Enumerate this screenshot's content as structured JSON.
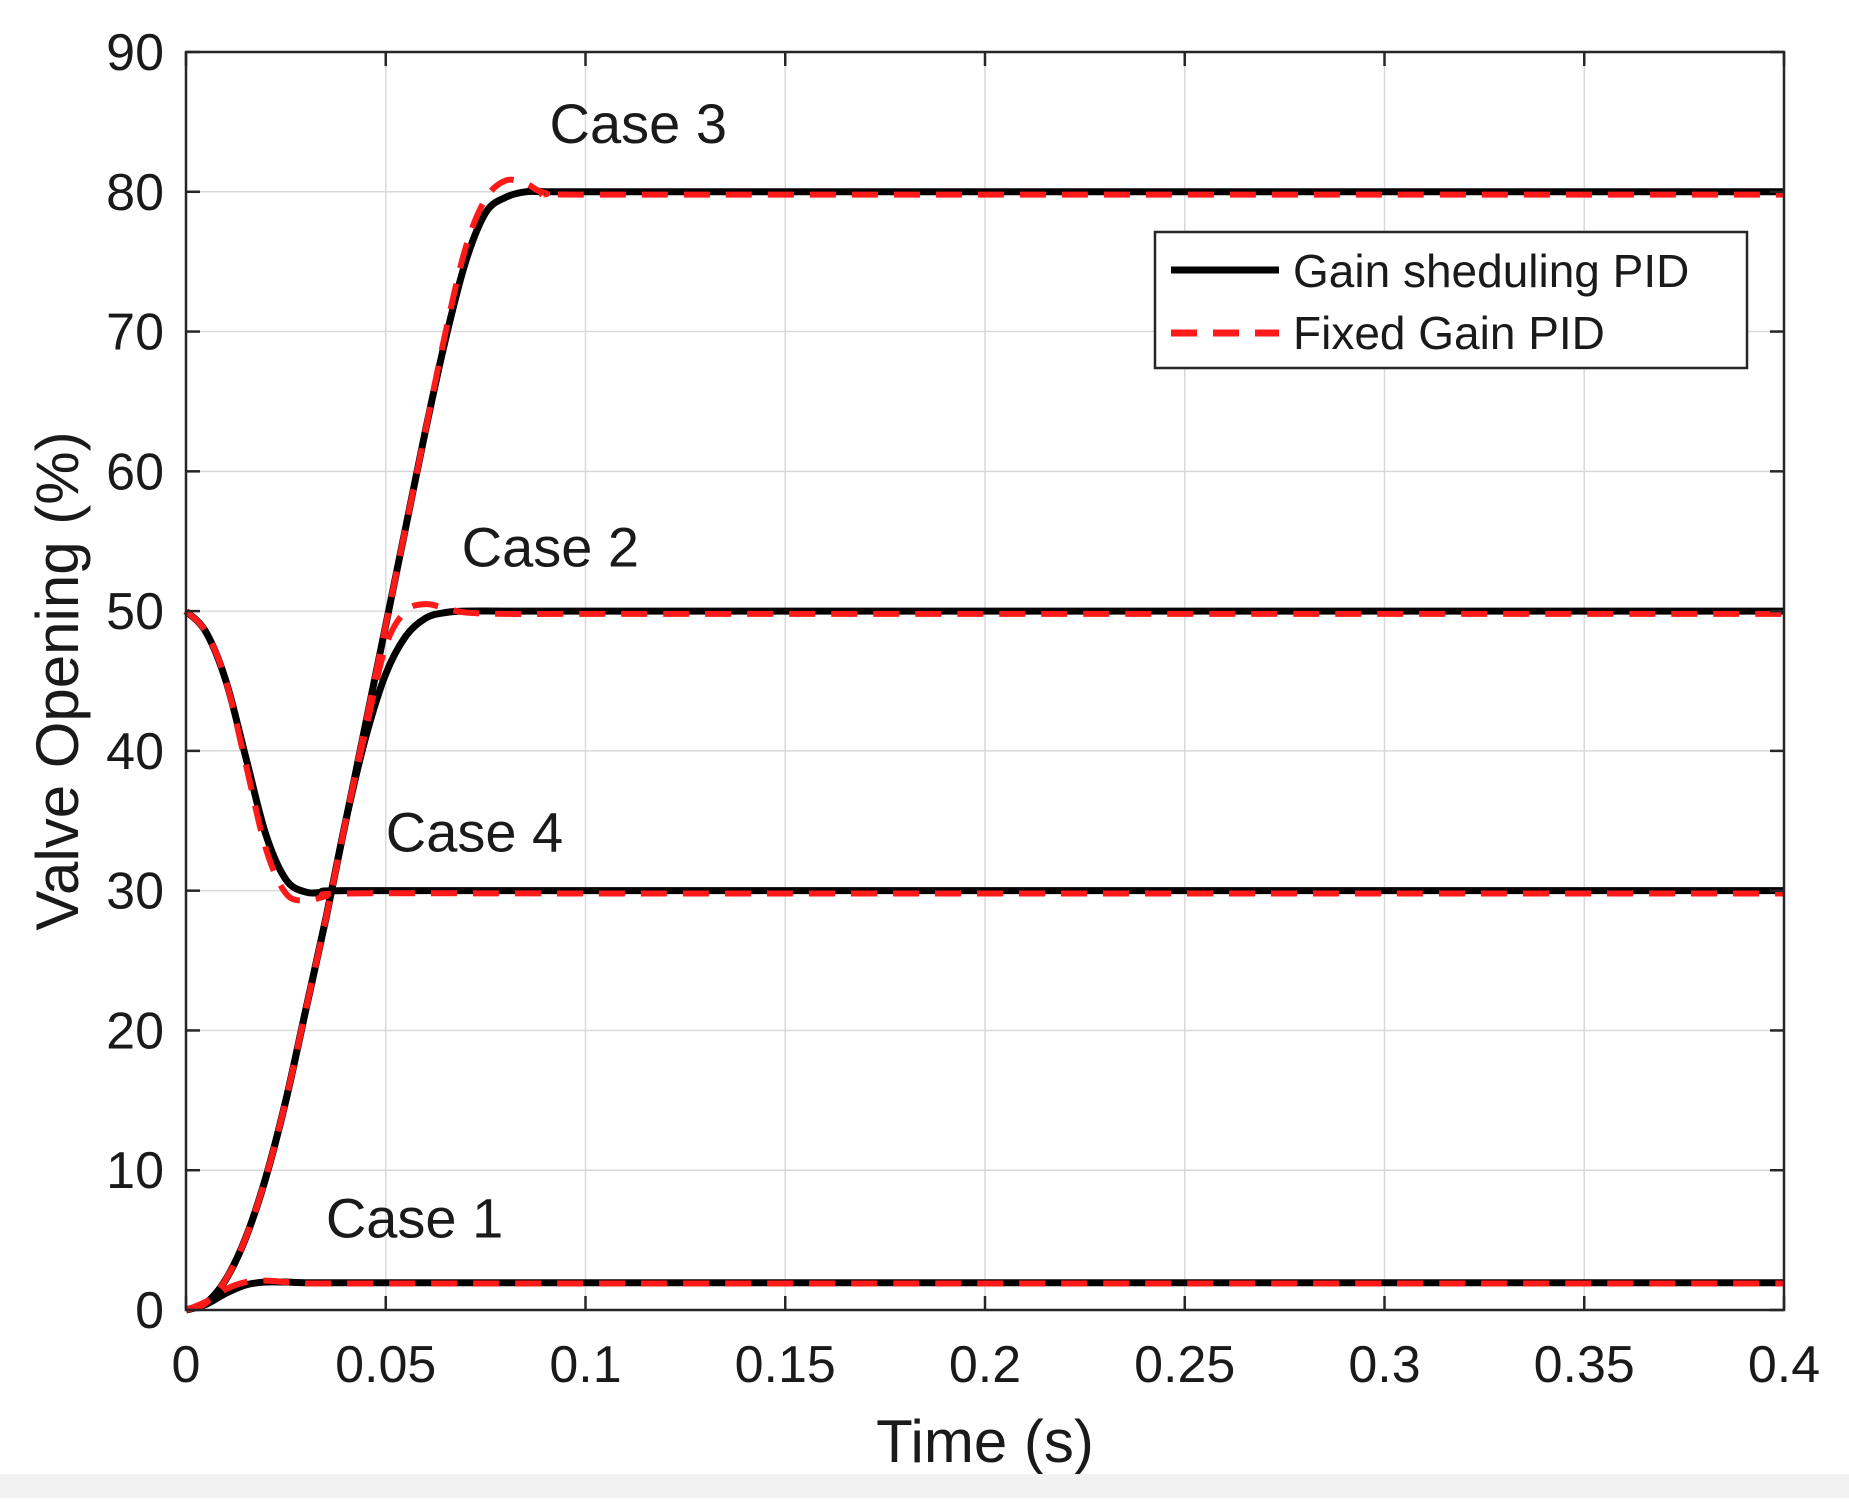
{
  "chart_data": {
    "type": "line",
    "xlabel": "Time (s)",
    "ylabel": "Valve Opening (%)",
    "xlim": [
      0,
      0.4
    ],
    "ylim": [
      0,
      90
    ],
    "xticks": [
      "0",
      "0.05",
      "0.1",
      "0.15",
      "0.2",
      "0.25",
      "0.3",
      "0.35",
      "0.4"
    ],
    "yticks": [
      "0",
      "10",
      "20",
      "30",
      "40",
      "50",
      "60",
      "70",
      "80",
      "90"
    ],
    "grid": true,
    "legend_position": "top-right",
    "legend": [
      {
        "label": "Gain sheduling PID",
        "color": "#000000",
        "style": "solid"
      },
      {
        "label": "Fixed Gain PID",
        "color": "#ff1a1a",
        "style": "dashed"
      }
    ],
    "annotations": [
      {
        "text": "Case 1",
        "x": 0.035,
        "y": 5.2
      },
      {
        "text": "Case 2",
        "x": 0.069,
        "y": 53.2
      },
      {
        "text": "Case 3",
        "x": 0.091,
        "y": 83.5
      },
      {
        "text": "Case 4",
        "x": 0.05,
        "y": 32.8
      }
    ],
    "series": [
      {
        "name": "Gain sheduling PID",
        "case": "Case 1",
        "color": "#000000",
        "style": "solid",
        "x": [
          0,
          0.005,
          0.01,
          0.015,
          0.02,
          0.025,
          0.03,
          0.04,
          0.1,
          0.2,
          0.3,
          0.4
        ],
        "y": [
          0,
          0.4,
          1.2,
          1.8,
          2.0,
          2.0,
          1.95,
          1.95,
          1.95,
          1.95,
          1.95,
          1.95
        ]
      },
      {
        "name": "Fixed Gain PID",
        "case": "Case 1",
        "color": "#ff1a1a",
        "style": "dashed",
        "x": [
          0,
          0.005,
          0.01,
          0.015,
          0.02,
          0.025,
          0.03,
          0.04,
          0.1,
          0.2,
          0.3,
          0.4
        ],
        "y": [
          0,
          0.6,
          1.5,
          2.0,
          2.1,
          2.0,
          1.9,
          1.9,
          1.9,
          1.9,
          1.9,
          1.9
        ]
      },
      {
        "name": "Gain sheduling PID",
        "case": "Case 2",
        "color": "#000000",
        "style": "solid",
        "x": [
          0,
          0.005,
          0.01,
          0.015,
          0.02,
          0.025,
          0.03,
          0.035,
          0.04,
          0.045,
          0.05,
          0.055,
          0.06,
          0.065,
          0.07,
          0.08,
          0.1,
          0.2,
          0.3,
          0.4
        ],
        "y": [
          0,
          0.5,
          2.2,
          5.2,
          9.5,
          15.0,
          21.5,
          28.0,
          35.0,
          41.0,
          45.5,
          48.2,
          49.5,
          49.9,
          50.0,
          50.0,
          50.0,
          50.0,
          50.0,
          50.0
        ]
      },
      {
        "name": "Fixed Gain PID",
        "case": "Case 2",
        "color": "#ff1a1a",
        "style": "dashed",
        "x": [
          0,
          0.005,
          0.01,
          0.015,
          0.02,
          0.025,
          0.03,
          0.035,
          0.04,
          0.045,
          0.05,
          0.055,
          0.06,
          0.065,
          0.07,
          0.08,
          0.1,
          0.2,
          0.3,
          0.4
        ],
        "y": [
          0,
          0.5,
          2.2,
          5.2,
          9.5,
          15.0,
          21.5,
          28.0,
          35.0,
          41.5,
          47.5,
          50.0,
          50.5,
          50.2,
          49.9,
          49.8,
          49.8,
          49.8,
          49.8,
          49.8
        ]
      },
      {
        "name": "Gain sheduling PID",
        "case": "Case 3",
        "color": "#000000",
        "style": "solid",
        "x": [
          0,
          0.005,
          0.01,
          0.015,
          0.02,
          0.025,
          0.03,
          0.035,
          0.04,
          0.045,
          0.05,
          0.055,
          0.06,
          0.065,
          0.07,
          0.075,
          0.08,
          0.085,
          0.09,
          0.1,
          0.2,
          0.3,
          0.4
        ],
        "y": [
          0,
          0.5,
          2.2,
          5.2,
          9.5,
          15.0,
          21.5,
          28.0,
          35.0,
          42.0,
          49.0,
          56.0,
          63.0,
          69.5,
          75.0,
          78.5,
          79.6,
          80.0,
          80.0,
          80.0,
          80.0,
          80.0,
          80.0
        ]
      },
      {
        "name": "Fixed Gain PID",
        "case": "Case 3",
        "color": "#ff1a1a",
        "style": "dashed",
        "x": [
          0,
          0.005,
          0.01,
          0.015,
          0.02,
          0.025,
          0.03,
          0.035,
          0.04,
          0.045,
          0.05,
          0.055,
          0.06,
          0.065,
          0.07,
          0.075,
          0.08,
          0.085,
          0.09,
          0.1,
          0.2,
          0.3,
          0.4
        ],
        "y": [
          0,
          0.5,
          2.2,
          5.2,
          9.5,
          15.0,
          21.5,
          28.0,
          35.0,
          42.0,
          49.0,
          56.0,
          63.0,
          70.0,
          76.0,
          79.5,
          80.8,
          80.6,
          79.9,
          79.8,
          79.8,
          79.8,
          79.8
        ]
      },
      {
        "name": "Gain sheduling PID",
        "case": "Case 4",
        "color": "#000000",
        "style": "solid",
        "x": [
          0,
          0.005,
          0.01,
          0.015,
          0.02,
          0.025,
          0.03,
          0.035,
          0.04,
          0.1,
          0.2,
          0.3,
          0.4
        ],
        "y": [
          50,
          48.5,
          45.0,
          39.5,
          34.0,
          30.8,
          29.9,
          29.9,
          30.0,
          30.0,
          30.0,
          30.0,
          30.0
        ]
      },
      {
        "name": "Fixed Gain PID",
        "case": "Case 4",
        "color": "#ff1a1a",
        "style": "dashed",
        "x": [
          0,
          0.005,
          0.01,
          0.015,
          0.02,
          0.025,
          0.03,
          0.035,
          0.04,
          0.1,
          0.2,
          0.3,
          0.4
        ],
        "y": [
          50,
          48.5,
          45.0,
          39.0,
          33.0,
          29.8,
          29.3,
          29.6,
          29.8,
          29.8,
          29.8,
          29.8,
          29.8
        ]
      }
    ]
  }
}
